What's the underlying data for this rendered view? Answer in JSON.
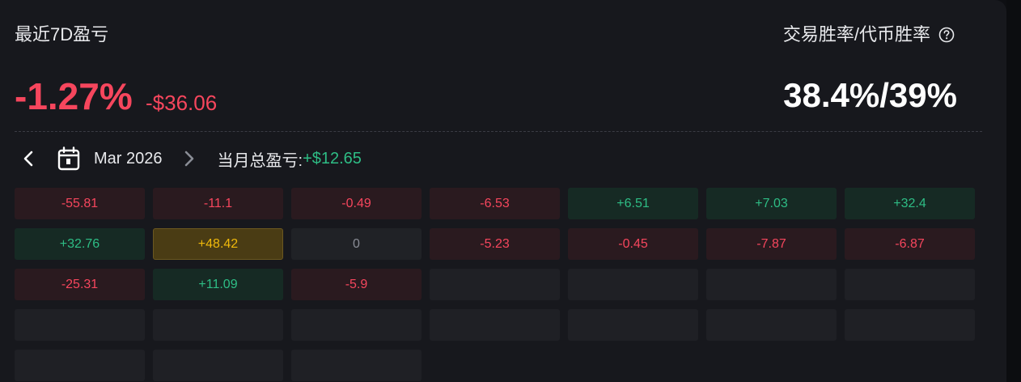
{
  "header": {
    "title": "最近7D盈亏",
    "winrate_title": "交易胜率/代币胜率",
    "pnl_percent": "-1.27%",
    "pnl_usd": "-$36.06",
    "winrate_value": "38.4%/39%"
  },
  "month_bar": {
    "month": "Mar 2026",
    "total_label": "当月总盈亏:",
    "total_value": "+$12.65"
  },
  "icons": {
    "prev": "chevron-left-icon",
    "next": "chevron-right-icon",
    "calendar": "calendar-icon",
    "help": "question-circle-icon"
  },
  "colors": {
    "negative": "#f6465d",
    "positive": "#2ebd85",
    "highlight": "#f0b90b"
  },
  "calendar": {
    "cells": [
      {
        "value": "-55.81",
        "type": "neg"
      },
      {
        "value": "-11.1",
        "type": "neg"
      },
      {
        "value": "-0.49",
        "type": "neg"
      },
      {
        "value": "-6.53",
        "type": "neg"
      },
      {
        "value": "+6.51",
        "type": "pos"
      },
      {
        "value": "+7.03",
        "type": "pos"
      },
      {
        "value": "+32.4",
        "type": "pos"
      },
      {
        "value": "+32.76",
        "type": "pos"
      },
      {
        "value": "+48.42",
        "type": "hi"
      },
      {
        "value": "0",
        "type": "zero"
      },
      {
        "value": "-5.23",
        "type": "neg"
      },
      {
        "value": "-0.45",
        "type": "neg"
      },
      {
        "value": "-7.87",
        "type": "neg"
      },
      {
        "value": "-6.87",
        "type": "neg"
      },
      {
        "value": "-25.31",
        "type": "neg"
      },
      {
        "value": "+11.09",
        "type": "pos"
      },
      {
        "value": "-5.9",
        "type": "neg"
      },
      {
        "value": "",
        "type": "empty"
      },
      {
        "value": "",
        "type": "empty"
      },
      {
        "value": "",
        "type": "empty"
      },
      {
        "value": "",
        "type": "empty"
      },
      {
        "value": "",
        "type": "empty"
      },
      {
        "value": "",
        "type": "empty"
      },
      {
        "value": "",
        "type": "empty"
      },
      {
        "value": "",
        "type": "empty"
      },
      {
        "value": "",
        "type": "empty"
      },
      {
        "value": "",
        "type": "empty"
      },
      {
        "value": "",
        "type": "empty"
      },
      {
        "value": "",
        "type": "empty"
      },
      {
        "value": "",
        "type": "empty"
      },
      {
        "value": "",
        "type": "empty"
      }
    ]
  }
}
